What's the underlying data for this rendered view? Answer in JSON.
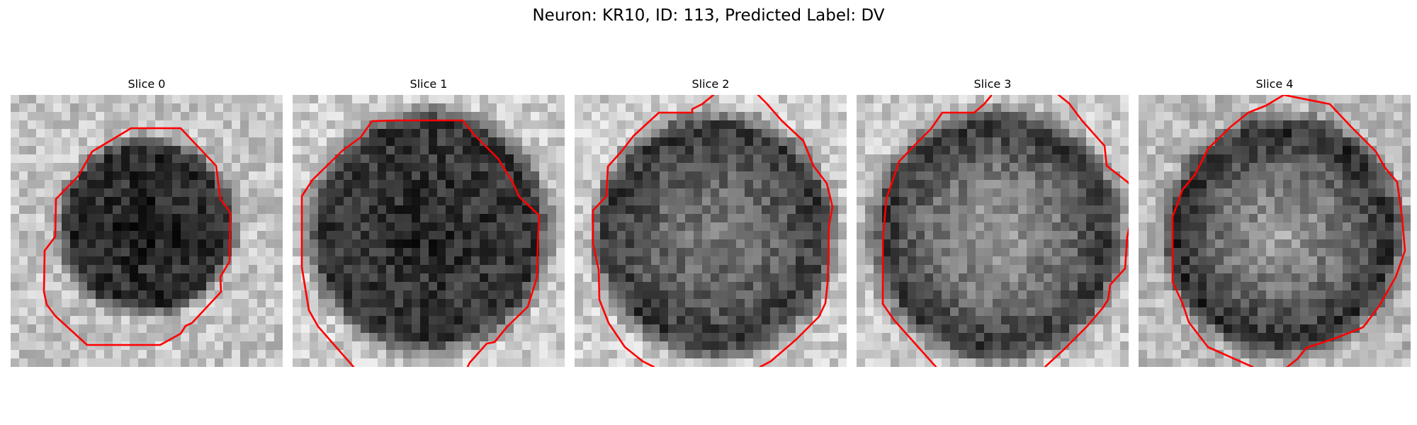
{
  "figure": {
    "title": "Neuron: KR10, ID: 113, Predicted Label: DV"
  },
  "colors": {
    "background": "#ffffff",
    "contour": "#ff0000",
    "image_colormap": "grayscale"
  },
  "panels": [
    {
      "label": "Slice 0"
    },
    {
      "label": "Slice 1"
    },
    {
      "label": "Slice 2"
    },
    {
      "label": "Slice 3"
    },
    {
      "label": "Slice 4"
    }
  ]
}
